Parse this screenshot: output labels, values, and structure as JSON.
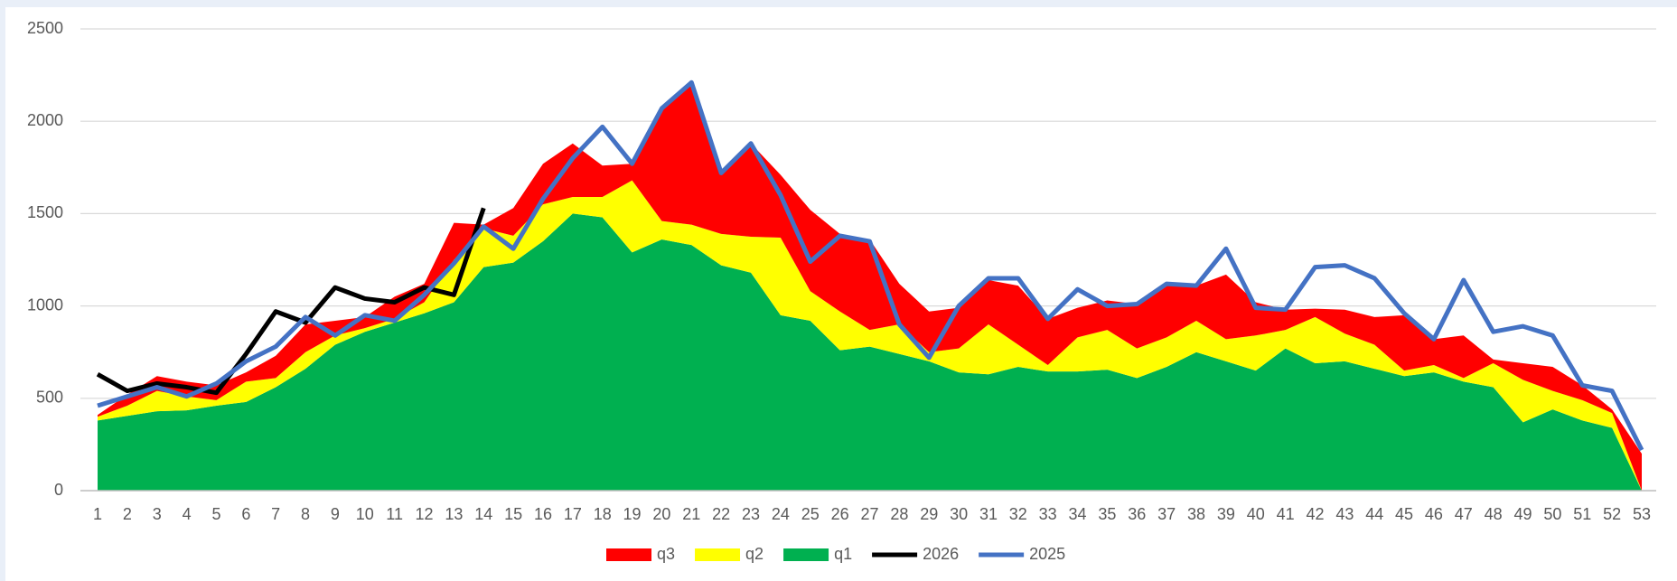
{
  "chart_data": {
    "type": "area",
    "categories": [
      "1",
      "2",
      "3",
      "4",
      "5",
      "6",
      "7",
      "8",
      "9",
      "10",
      "11",
      "12",
      "13",
      "14",
      "15",
      "16",
      "17",
      "18",
      "19",
      "20",
      "21",
      "22",
      "23",
      "24",
      "25",
      "26",
      "27",
      "28",
      "29",
      "30",
      "31",
      "32",
      "33",
      "34",
      "35",
      "36",
      "37",
      "38",
      "39",
      "40",
      "41",
      "42",
      "43",
      "44",
      "45",
      "46",
      "47",
      "48",
      "49",
      "50",
      "51",
      "52",
      "53"
    ],
    "series": [
      {
        "name": "q1",
        "type": "area",
        "color": "#00b050",
        "values": [
          380,
          405,
          430,
          435,
          460,
          480,
          560,
          660,
          790,
          860,
          910,
          960,
          1020,
          1210,
          1235,
          1350,
          1500,
          1480,
          1290,
          1360,
          1330,
          1220,
          1180,
          950,
          920,
          760,
          780,
          740,
          700,
          640,
          630,
          670,
          645,
          645,
          655,
          610,
          670,
          750,
          700,
          650,
          770,
          690,
          700,
          660,
          620,
          640,
          590,
          560,
          370,
          440,
          380,
          340,
          0
        ]
      },
      {
        "name": "q2",
        "type": "area",
        "color": "#ffff00",
        "values": [
          20,
          55,
          110,
          75,
          30,
          110,
          50,
          90,
          50,
          20,
          20,
          60,
          230,
          210,
          145,
          200,
          90,
          110,
          390,
          100,
          110,
          170,
          195,
          420,
          160,
          210,
          90,
          160,
          50,
          130,
          270,
          120,
          35,
          185,
          215,
          160,
          160,
          170,
          120,
          190,
          100,
          250,
          150,
          130,
          30,
          40,
          20,
          130,
          230,
          100,
          110,
          80,
          0
        ]
      },
      {
        "name": "q3",
        "type": "area",
        "color": "#ff0000",
        "values": [
          10,
          60,
          80,
          80,
          80,
          50,
          120,
          150,
          80,
          60,
          120,
          100,
          200,
          20,
          150,
          220,
          290,
          170,
          90,
          610,
          760,
          330,
          505,
          340,
          440,
          420,
          490,
          220,
          220,
          220,
          240,
          320,
          250,
          160,
          160,
          240,
          290,
          190,
          350,
          180,
          110,
          45,
          130,
          150,
          300,
          140,
          230,
          20,
          90,
          130,
          80,
          20,
          200
        ]
      },
      {
        "name": "2026",
        "type": "line",
        "color": "#000000",
        "values": [
          630,
          540,
          580,
          560,
          530,
          740,
          970,
          910,
          1100,
          1040,
          1020,
          1100,
          1060,
          1530,
          null,
          null,
          null,
          null,
          null,
          null,
          null,
          null,
          null,
          null,
          null,
          null,
          null,
          null,
          null,
          null,
          null,
          null,
          null,
          null,
          null,
          null,
          null,
          null,
          null,
          null,
          null,
          null,
          null,
          null,
          null,
          null,
          null,
          null,
          null,
          null,
          null,
          null,
          null
        ]
      },
      {
        "name": "2025",
        "type": "line",
        "color": "#4472c4",
        "values": [
          460,
          510,
          560,
          510,
          580,
          700,
          780,
          940,
          840,
          950,
          920,
          1060,
          1230,
          1430,
          1310,
          1580,
          1800,
          1970,
          1770,
          2070,
          2210,
          1720,
          1880,
          1600,
          1240,
          1380,
          1350,
          900,
          720,
          1000,
          1150,
          1150,
          930,
          1090,
          1000,
          1010,
          1120,
          1110,
          1310,
          990,
          980,
          1210,
          1220,
          1150,
          960,
          820,
          1140,
          860,
          890,
          840,
          570,
          540,
          220
        ]
      }
    ],
    "ylim": [
      0,
      2500
    ],
    "yticks": [
      0,
      500,
      1000,
      1500,
      2000,
      2500
    ],
    "grid": true,
    "legend": "bottom"
  }
}
